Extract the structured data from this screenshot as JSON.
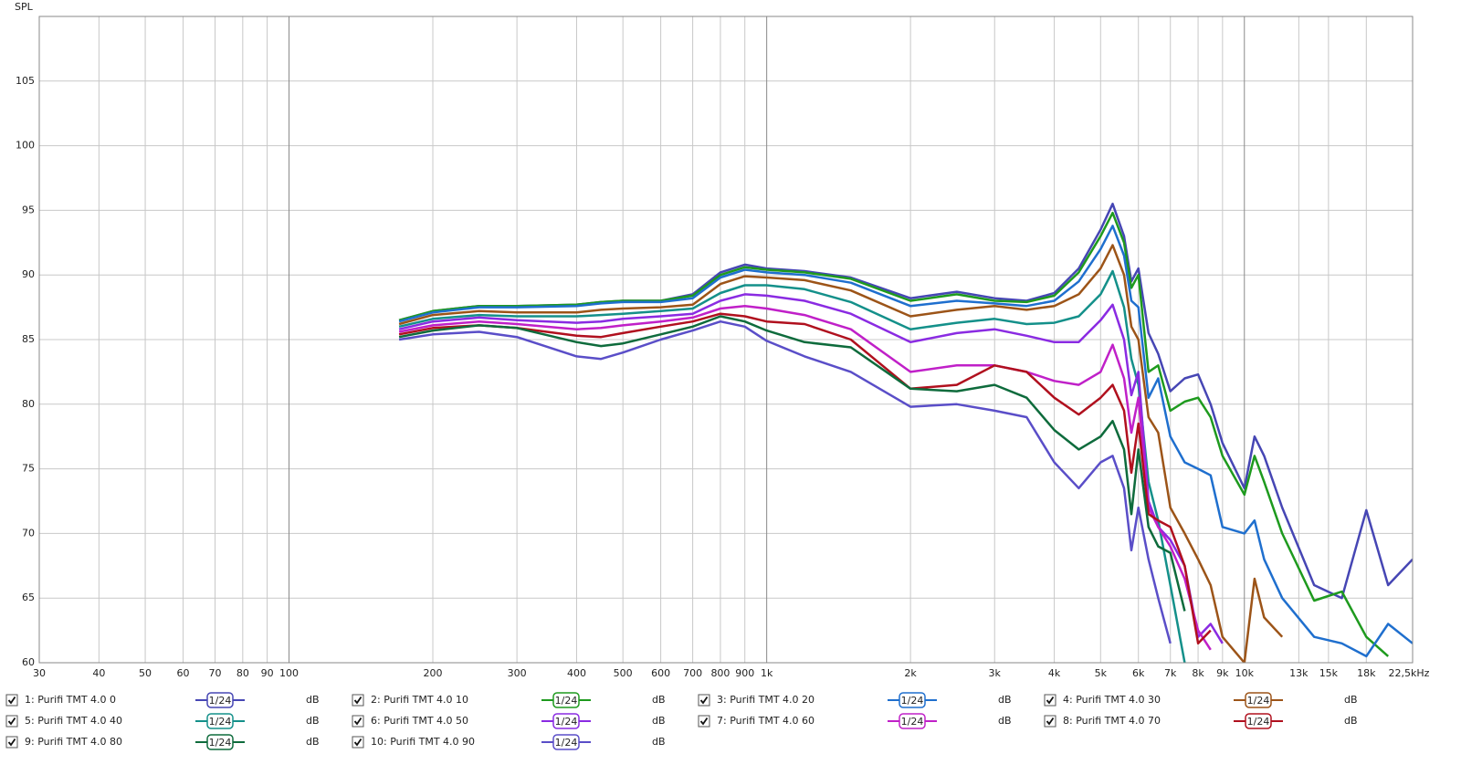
{
  "chart_data": {
    "type": "line",
    "xscale": "log",
    "ylabel": "SPL",
    "grid": true,
    "xlim": [
      30,
      22500
    ],
    "ylim": [
      60,
      110
    ],
    "xticks": [
      30,
      40,
      50,
      60,
      70,
      80,
      90,
      100,
      200,
      300,
      400,
      500,
      600,
      700,
      800,
      900,
      {
        "value": 1000,
        "label": "1k"
      },
      {
        "value": 2000,
        "label": "2k"
      },
      {
        "value": 3000,
        "label": "3k"
      },
      {
        "value": 4000,
        "label": "4k"
      },
      {
        "value": 5000,
        "label": "5k"
      },
      {
        "value": 6000,
        "label": "6k"
      },
      {
        "value": 7000,
        "label": "7k"
      },
      {
        "value": 8000,
        "label": "8k"
      },
      {
        "value": 9000,
        "label": "9k"
      },
      {
        "value": 10000,
        "label": "10k"
      },
      {
        "value": 13000,
        "label": "13k"
      },
      {
        "value": 15000,
        "label": "15k"
      },
      {
        "value": 18000,
        "label": "18k"
      },
      {
        "value": 22500,
        "label": "22,5kHz"
      }
    ],
    "yticks": [
      60,
      65,
      70,
      75,
      80,
      85,
      90,
      95,
      100,
      105
    ],
    "x": [
      170,
      200,
      250,
      300,
      400,
      450,
      500,
      600,
      700,
      800,
      900,
      1000,
      1200,
      1500,
      2000,
      2500,
      3000,
      3500,
      4000,
      4500,
      5000,
      5300,
      5600,
      5800,
      6000,
      6300,
      6600,
      7000,
      7500,
      8000,
      8500,
      9000,
      10000,
      10500,
      11000,
      12000,
      14000,
      16000,
      18000,
      20000,
      22500
    ],
    "series": [
      {
        "name": "1: Purifi TMT 4.0 0",
        "color": "#4646b4",
        "smoothing": "1/24",
        "unit": "dB",
        "values": [
          86.5,
          87.2,
          87.6,
          87.6,
          87.7,
          87.9,
          88.0,
          88.0,
          88.5,
          90.2,
          90.8,
          90.5,
          90.3,
          89.8,
          88.2,
          88.7,
          88.2,
          88.0,
          88.6,
          90.5,
          93.5,
          95.5,
          93.0,
          89.5,
          90.5,
          85.5,
          83.9,
          81.0,
          82.0,
          82.3,
          80.0,
          77.0,
          73.5,
          77.5,
          76.0,
          72.0,
          66.0,
          65.0,
          71.8,
          66.0,
          68.0
        ]
      },
      {
        "name": "2: Purifi TMT 4.0 10",
        "color": "#1e9a1e",
        "smoothing": "1/24",
        "unit": "dB",
        "values": [
          86.5,
          87.2,
          87.6,
          87.6,
          87.7,
          87.9,
          88.0,
          88.0,
          88.4,
          90.0,
          90.6,
          90.4,
          90.2,
          89.7,
          88.0,
          88.5,
          88.0,
          87.9,
          88.4,
          90.2,
          93.0,
          94.8,
          92.5,
          89.0,
          90.0,
          82.5,
          83.0,
          79.5,
          80.2,
          80.5,
          79.0,
          76.0,
          73.0,
          76.0,
          74.0,
          70.0,
          64.8,
          65.5,
          62.0,
          60.5,
          null
        ]
      },
      {
        "name": "3: Purifi TMT 4.0 20",
        "color": "#1f6fce",
        "smoothing": "1/24",
        "unit": "dB",
        "values": [
          86.4,
          87.1,
          87.5,
          87.5,
          87.6,
          87.8,
          87.9,
          87.9,
          88.2,
          89.8,
          90.4,
          90.2,
          90.0,
          89.4,
          87.6,
          88.0,
          87.8,
          87.6,
          88.0,
          89.5,
          92.0,
          93.8,
          91.5,
          88.0,
          87.5,
          80.5,
          82.0,
          77.5,
          75.5,
          75.0,
          74.5,
          70.5,
          70.0,
          71.0,
          68.0,
          65.0,
          62.0,
          61.5,
          60.5,
          63.0,
          61.5
        ]
      },
      {
        "name": "4: Purifi TMT 4.0 30",
        "color": "#9c5418",
        "smoothing": "1/24",
        "unit": "dB",
        "values": [
          86.2,
          86.9,
          87.2,
          87.1,
          87.1,
          87.3,
          87.4,
          87.5,
          87.7,
          89.3,
          89.9,
          89.8,
          89.6,
          88.8,
          86.8,
          87.3,
          87.6,
          87.3,
          87.6,
          88.5,
          90.5,
          92.3,
          90.0,
          86.0,
          85.0,
          79.0,
          77.8,
          72.0,
          70.0,
          68.0,
          66.0,
          62.0,
          60.0,
          66.5,
          63.5,
          62.0,
          null,
          null,
          null,
          null,
          null
        ]
      },
      {
        "name": "5: Purifi TMT 4.0 40",
        "color": "#14908a",
        "smoothing": "1/24",
        "unit": "dB",
        "values": [
          86.0,
          86.6,
          86.9,
          86.8,
          86.8,
          86.9,
          87.0,
          87.2,
          87.4,
          88.6,
          89.2,
          89.2,
          88.9,
          87.9,
          85.8,
          86.3,
          86.6,
          86.2,
          86.3,
          86.8,
          88.5,
          90.3,
          87.5,
          83.5,
          81.5,
          74.0,
          71.0,
          66.0,
          60.0,
          null,
          null,
          null,
          null,
          null,
          null,
          null,
          null,
          null,
          null,
          null,
          null
        ]
      },
      {
        "name": "6: Purifi TMT 4.0 50",
        "color": "#8a2be2",
        "smoothing": "1/24",
        "unit": "dB",
        "values": [
          85.8,
          86.4,
          86.7,
          86.5,
          86.3,
          86.4,
          86.6,
          86.8,
          87.0,
          88.0,
          88.5,
          88.4,
          88.0,
          87.0,
          84.8,
          85.5,
          85.8,
          85.3,
          84.8,
          84.8,
          86.5,
          87.7,
          85.0,
          80.7,
          82.5,
          72.5,
          70.5,
          69.5,
          67.5,
          62.0,
          63.0,
          61.5,
          null,
          null,
          null,
          null,
          null,
          null,
          null,
          null,
          null
        ]
      },
      {
        "name": "7: Purifi TMT 4.0 60",
        "color": "#c020c8",
        "smoothing": "1/24",
        "unit": "dB",
        "values": [
          85.6,
          86.1,
          86.4,
          86.2,
          85.8,
          85.9,
          86.1,
          86.4,
          86.7,
          87.4,
          87.6,
          87.4,
          86.9,
          85.8,
          82.5,
          83.0,
          83.0,
          82.5,
          81.8,
          81.5,
          82.5,
          84.6,
          82.0,
          77.8,
          80.5,
          72.0,
          70.5,
          69.0,
          66.5,
          62.5,
          61.0,
          null,
          null,
          null,
          null,
          null,
          null,
          null,
          null,
          null,
          null
        ]
      },
      {
        "name": "8: Purifi TMT 4.0 70",
        "color": "#b0101e",
        "smoothing": "1/24",
        "unit": "dB",
        "values": [
          85.4,
          85.9,
          86.1,
          85.9,
          85.3,
          85.2,
          85.5,
          86.0,
          86.4,
          87.0,
          86.8,
          86.4,
          86.2,
          85.0,
          81.2,
          81.5,
          83.0,
          82.5,
          80.5,
          79.2,
          80.5,
          81.5,
          79.5,
          74.7,
          78.5,
          71.5,
          71.0,
          70.5,
          67.5,
          61.5,
          62.5,
          null,
          null,
          null,
          null,
          null,
          null,
          null,
          null,
          null,
          null
        ]
      },
      {
        "name": "9: Purifi TMT 4.0 80",
        "color": "#0e6b3c",
        "smoothing": "1/24",
        "unit": "dB",
        "values": [
          85.2,
          85.7,
          86.1,
          85.9,
          84.8,
          84.5,
          84.7,
          85.4,
          86.0,
          86.8,
          86.4,
          85.7,
          84.8,
          84.4,
          81.2,
          81.0,
          81.5,
          80.5,
          78.0,
          76.5,
          77.5,
          78.7,
          76.5,
          71.5,
          76.5,
          70.5,
          69.0,
          68.5,
          64.0,
          null,
          null,
          null,
          null,
          null,
          null,
          null,
          null,
          null,
          null,
          null,
          null
        ]
      },
      {
        "name": "10: Purifi TMT 4.0 90",
        "color": "#5a4ec8",
        "smoothing": "1/24",
        "unit": "dB",
        "values": [
          85.0,
          85.4,
          85.6,
          85.2,
          83.7,
          83.5,
          84.0,
          85.0,
          85.7,
          86.4,
          86.0,
          84.9,
          83.7,
          82.5,
          79.8,
          80.0,
          79.5,
          79.0,
          75.5,
          73.5,
          75.5,
          76.0,
          73.5,
          68.7,
          72.0,
          68.0,
          65.0,
          61.5,
          null,
          null,
          null,
          null,
          null,
          null,
          null,
          null,
          null,
          null,
          null,
          null,
          null
        ]
      }
    ]
  }
}
